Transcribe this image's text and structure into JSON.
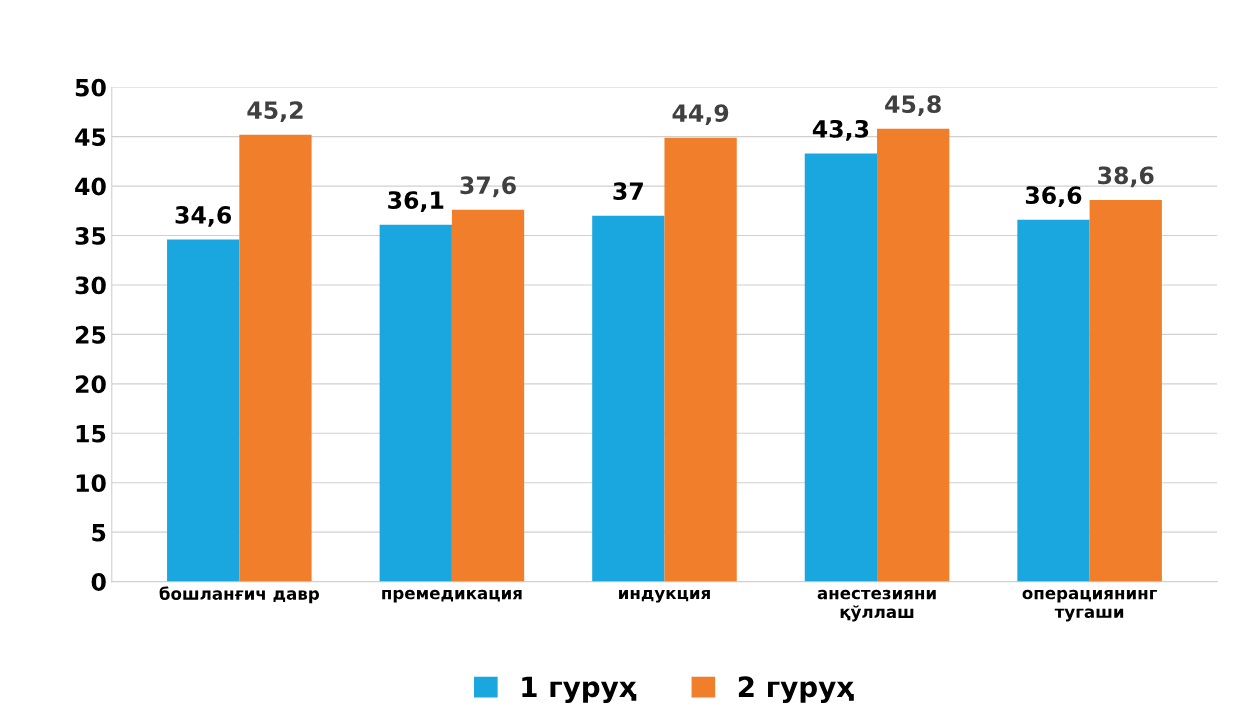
{
  "chart_data": {
    "type": "bar",
    "categories": [
      "бошланғич давр",
      "премедикация",
      "индукция",
      "анестезияни\nқўллаш",
      "операциянинг\nтугаши"
    ],
    "series": [
      {
        "name": "1 гуруҳ",
        "color": "#1aa7df",
        "values": [
          34.6,
          36.1,
          37,
          43.3,
          36.6
        ],
        "value_labels": [
          "34,6",
          "36,1",
          "37",
          "43,3",
          "36,6"
        ]
      },
      {
        "name": "2 гуруҳ",
        "color": "#f07e2b",
        "values": [
          45.2,
          37.6,
          44.9,
          45.8,
          38.6
        ],
        "value_labels": [
          "45,2",
          "37,6",
          "44,9",
          "45,8",
          "38,6"
        ]
      }
    ],
    "ylim": [
      0,
      50
    ],
    "yticks": [
      0,
      5,
      10,
      15,
      20,
      25,
      30,
      35,
      40,
      45,
      50
    ],
    "grid": "y",
    "legend": "bottom"
  }
}
